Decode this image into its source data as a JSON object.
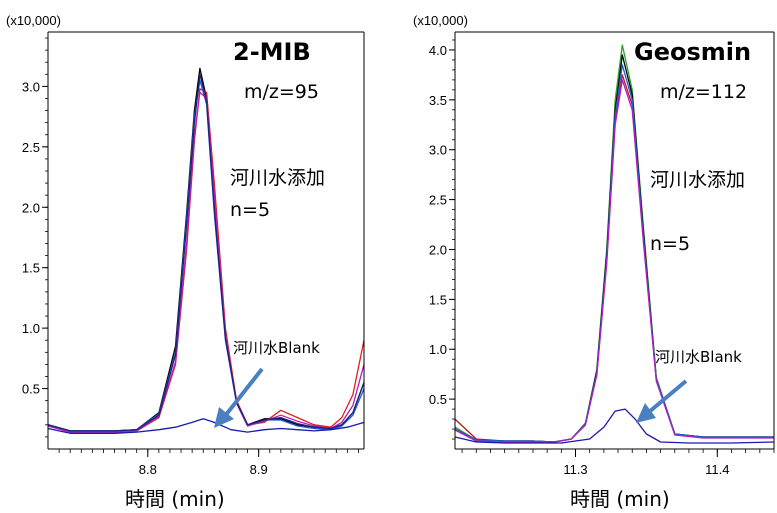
{
  "chart_data": [
    {
      "type": "line",
      "title": "2-MIB",
      "subtitle": "m/z=95",
      "scale_label": "(x10,000)",
      "xlabel": "時間 (min)",
      "annotation_sample": [
        "河川水添加",
        "n=5"
      ],
      "annotation_blank": "河川水Blank",
      "xlim": [
        8.71,
        8.995
      ],
      "ylim": [
        0,
        3.45
      ],
      "yticks": [
        0.5,
        1.0,
        1.5,
        2.0,
        2.5,
        3.0
      ],
      "ytick_labels": [
        "0.5",
        "1.0",
        "1.5",
        "2.0",
        "2.5",
        "3.0"
      ],
      "xticks": [
        8.8,
        8.9
      ],
      "xtick_labels": [
        "8.8",
        "8.9"
      ],
      "grid": false,
      "series": [
        {
          "color": "#000000",
          "x": [
            8.71,
            8.73,
            8.75,
            8.77,
            8.79,
            8.81,
            8.825,
            8.835,
            8.842,
            8.847,
            8.853,
            8.86,
            8.87,
            8.88,
            8.89,
            8.905,
            8.92,
            8.935,
            8.95,
            8.965,
            8.975,
            8.985,
            8.995
          ],
          "y": [
            0.2,
            0.15,
            0.15,
            0.15,
            0.16,
            0.3,
            0.85,
            1.95,
            2.8,
            3.15,
            2.9,
            2.0,
            0.95,
            0.4,
            0.2,
            0.25,
            0.25,
            0.2,
            0.18,
            0.17,
            0.2,
            0.3,
            0.55
          ]
        },
        {
          "color": "#e11d1d",
          "x": [
            8.71,
            8.73,
            8.75,
            8.77,
            8.79,
            8.81,
            8.825,
            8.835,
            8.842,
            8.847,
            8.853,
            8.86,
            8.87,
            8.88,
            8.89,
            8.905,
            8.92,
            8.935,
            8.95,
            8.965,
            8.975,
            8.985,
            8.995
          ],
          "y": [
            0.19,
            0.14,
            0.14,
            0.14,
            0.15,
            0.26,
            0.7,
            1.65,
            2.55,
            2.98,
            2.95,
            2.2,
            1.0,
            0.4,
            0.2,
            0.22,
            0.32,
            0.26,
            0.2,
            0.18,
            0.26,
            0.45,
            0.9
          ]
        },
        {
          "color": "#1f5fd0",
          "x": [
            8.71,
            8.73,
            8.75,
            8.77,
            8.79,
            8.81,
            8.825,
            8.835,
            8.842,
            8.847,
            8.853,
            8.86,
            8.87,
            8.88,
            8.89,
            8.905,
            8.92,
            8.935,
            8.95,
            8.965,
            8.975,
            8.985,
            8.995
          ],
          "y": [
            0.2,
            0.15,
            0.15,
            0.15,
            0.16,
            0.29,
            0.8,
            1.9,
            2.75,
            3.05,
            2.85,
            1.95,
            0.9,
            0.38,
            0.19,
            0.24,
            0.24,
            0.19,
            0.17,
            0.16,
            0.19,
            0.28,
            0.5
          ]
        },
        {
          "color": "#b01ec0",
          "x": [
            8.71,
            8.73,
            8.75,
            8.77,
            8.79,
            8.81,
            8.825,
            8.835,
            8.842,
            8.847,
            8.853,
            8.86,
            8.87,
            8.88,
            8.89,
            8.905,
            8.92,
            8.935,
            8.95,
            8.965,
            8.975,
            8.985,
            8.995
          ],
          "y": [
            0.19,
            0.14,
            0.14,
            0.14,
            0.15,
            0.27,
            0.72,
            1.7,
            2.6,
            2.95,
            2.9,
            2.1,
            0.95,
            0.38,
            0.19,
            0.23,
            0.28,
            0.23,
            0.19,
            0.17,
            0.22,
            0.36,
            0.7
          ]
        },
        {
          "color": "#1a237e",
          "x": [
            8.71,
            8.73,
            8.75,
            8.77,
            8.79,
            8.81,
            8.825,
            8.835,
            8.842,
            8.847,
            8.853,
            8.86,
            8.87,
            8.88,
            8.89,
            8.905,
            8.92,
            8.935,
            8.95,
            8.965,
            8.975,
            8.985,
            8.995
          ],
          "y": [
            0.2,
            0.15,
            0.15,
            0.15,
            0.16,
            0.28,
            0.78,
            1.85,
            2.7,
            3.1,
            2.88,
            1.98,
            0.92,
            0.39,
            0.2,
            0.24,
            0.26,
            0.21,
            0.18,
            0.17,
            0.2,
            0.3,
            0.55
          ]
        },
        {
          "color": "#1a1ab0",
          "x": [
            8.71,
            8.73,
            8.75,
            8.77,
            8.79,
            8.81,
            8.825,
            8.84,
            8.85,
            8.86,
            8.875,
            8.89,
            8.905,
            8.92,
            8.935,
            8.95,
            8.965,
            8.98,
            8.995
          ],
          "y": [
            0.17,
            0.13,
            0.13,
            0.13,
            0.14,
            0.16,
            0.18,
            0.22,
            0.25,
            0.22,
            0.16,
            0.14,
            0.16,
            0.17,
            0.16,
            0.15,
            0.16,
            0.18,
            0.22
          ]
        }
      ]
    },
    {
      "type": "line",
      "title": "Geosmin",
      "subtitle": "m/z=112",
      "scale_label": "(x10,000)",
      "xlabel": "時間 (min)",
      "annotation_sample": [
        "河川水添加",
        "n=5"
      ],
      "annotation_blank": "河川水Blank",
      "xlim": [
        11.215,
        11.44
      ],
      "ylim": [
        0,
        4.18
      ],
      "yticks": [
        0.5,
        1.0,
        1.5,
        2.0,
        2.5,
        3.0,
        3.5,
        4.0
      ],
      "ytick_labels": [
        "0.5",
        "1.0",
        "1.5",
        "2.0",
        "2.5",
        "3.0",
        "3.5",
        "4.0"
      ],
      "xticks": [
        11.3,
        11.4
      ],
      "xtick_labels": [
        "11.3",
        "11.4"
      ],
      "grid": false,
      "series": [
        {
          "color": "#b01c1c",
          "x": [
            11.215,
            11.23,
            11.25,
            11.27,
            11.285,
            11.297,
            11.307,
            11.315,
            11.322,
            11.328,
            11.333,
            11.34,
            11.348,
            11.357,
            11.37,
            11.39,
            11.41,
            11.44
          ],
          "y": [
            0.3,
            0.1,
            0.08,
            0.08,
            0.07,
            0.1,
            0.25,
            0.75,
            1.9,
            3.3,
            3.75,
            3.45,
            2.1,
            0.7,
            0.15,
            0.12,
            0.12,
            0.12
          ]
        },
        {
          "color": "#2ba12b",
          "x": [
            11.215,
            11.23,
            11.25,
            11.27,
            11.285,
            11.297,
            11.307,
            11.315,
            11.322,
            11.328,
            11.333,
            11.34,
            11.348,
            11.357,
            11.37,
            11.39,
            11.41,
            11.44
          ],
          "y": [
            0.22,
            0.09,
            0.08,
            0.08,
            0.07,
            0.1,
            0.26,
            0.8,
            2.0,
            3.5,
            4.05,
            3.6,
            2.2,
            0.72,
            0.15,
            0.12,
            0.12,
            0.12
          ]
        },
        {
          "color": "#000000",
          "x": [
            11.215,
            11.23,
            11.25,
            11.27,
            11.285,
            11.297,
            11.307,
            11.315,
            11.322,
            11.328,
            11.333,
            11.34,
            11.348,
            11.357,
            11.37,
            11.39,
            11.41,
            11.44
          ],
          "y": [
            0.2,
            0.09,
            0.08,
            0.08,
            0.07,
            0.1,
            0.25,
            0.78,
            1.95,
            3.4,
            3.95,
            3.55,
            2.15,
            0.7,
            0.15,
            0.12,
            0.12,
            0.12
          ]
        },
        {
          "color": "#1f5fd0",
          "x": [
            11.215,
            11.23,
            11.25,
            11.27,
            11.285,
            11.297,
            11.307,
            11.315,
            11.322,
            11.328,
            11.333,
            11.34,
            11.348,
            11.357,
            11.37,
            11.39,
            11.41,
            11.44
          ],
          "y": [
            0.2,
            0.09,
            0.08,
            0.08,
            0.07,
            0.1,
            0.25,
            0.76,
            1.9,
            3.35,
            3.85,
            3.5,
            2.1,
            0.7,
            0.15,
            0.12,
            0.12,
            0.12
          ]
        },
        {
          "color": "#b01ec0",
          "x": [
            11.215,
            11.23,
            11.25,
            11.27,
            11.285,
            11.297,
            11.307,
            11.315,
            11.322,
            11.328,
            11.333,
            11.34,
            11.348,
            11.357,
            11.37,
            11.39,
            11.41,
            11.44
          ],
          "y": [
            0.19,
            0.08,
            0.07,
            0.07,
            0.07,
            0.1,
            0.24,
            0.74,
            1.85,
            3.25,
            3.7,
            3.4,
            2.05,
            0.68,
            0.14,
            0.11,
            0.11,
            0.11
          ]
        },
        {
          "color": "#1a1ab0",
          "x": [
            11.215,
            11.23,
            11.25,
            11.27,
            11.29,
            11.31,
            11.32,
            11.328,
            11.335,
            11.342,
            11.35,
            11.36,
            11.38,
            11.41,
            11.44
          ],
          "y": [
            0.12,
            0.07,
            0.06,
            0.06,
            0.06,
            0.1,
            0.22,
            0.38,
            0.4,
            0.3,
            0.15,
            0.07,
            0.06,
            0.06,
            0.07
          ]
        }
      ]
    }
  ]
}
